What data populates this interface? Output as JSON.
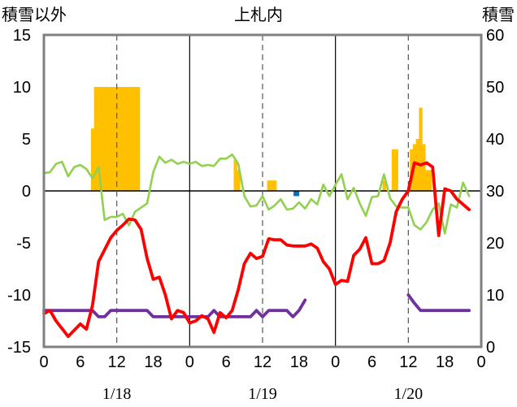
{
  "chart_data": {
    "type": "bar+line",
    "title": "上札内",
    "left_axis_label": "積雪以外",
    "right_axis_label": "積雪",
    "left_ylim": [
      -15,
      15
    ],
    "right_ylim": [
      0,
      60
    ],
    "left_ticks": [
      "15",
      "10",
      "5",
      "0",
      "-5",
      "-10",
      "-15"
    ],
    "right_ticks": [
      "60",
      "50",
      "40",
      "30",
      "20",
      "10",
      "0"
    ],
    "x_tick_labels": [
      "0",
      "6",
      "12",
      "18",
      "0",
      "6",
      "12",
      "18",
      "0",
      "6",
      "12",
      "18",
      "0"
    ],
    "x_hours_range": [
      0,
      72
    ],
    "date_labels": [
      {
        "label": "1/18",
        "hour": 12
      },
      {
        "label": "1/19",
        "hour": 36
      },
      {
        "label": "1/20",
        "hour": 60
      }
    ],
    "colors": {
      "bars": "#FFC000",
      "blue_bar": "#0070C0",
      "red": "#FF0000",
      "green": "#92D050",
      "purple": "#7030A0",
      "frame": "#808080"
    },
    "bars_orange": {
      "axis": "left",
      "points": [
        [
          8,
          6
        ],
        [
          8.5,
          10
        ],
        [
          9,
          10
        ],
        [
          9.5,
          10
        ],
        [
          10,
          10
        ],
        [
          10.5,
          10
        ],
        [
          11,
          10
        ],
        [
          11.5,
          10
        ],
        [
          12,
          10
        ],
        [
          12.5,
          10
        ],
        [
          13,
          10
        ],
        [
          13.5,
          10
        ],
        [
          14,
          10
        ],
        [
          14.5,
          10
        ],
        [
          15,
          10
        ],
        [
          15.5,
          10
        ],
        [
          31.5,
          3
        ],
        [
          32,
          2
        ],
        [
          37,
          1
        ],
        [
          37.5,
          1
        ],
        [
          38,
          1
        ],
        [
          56,
          1
        ],
        [
          57.5,
          4
        ],
        [
          58,
          4
        ],
        [
          60.5,
          4
        ],
        [
          61,
          4.5
        ],
        [
          61.5,
          5
        ],
        [
          62,
          8
        ],
        [
          62.5,
          4.5
        ],
        [
          63,
          2
        ],
        [
          63.5,
          2
        ]
      ]
    },
    "bars_blue": {
      "axis": "left",
      "points": [
        [
          41.5,
          -0.5
        ]
      ]
    },
    "series": [
      {
        "name": "red",
        "axis": "left",
        "points": [
          [
            0,
            -11.8
          ],
          [
            1,
            -11.5
          ],
          [
            2,
            -12.5
          ],
          [
            4,
            -14
          ],
          [
            6,
            -12.8
          ],
          [
            7,
            -13.3
          ],
          [
            8,
            -11
          ],
          [
            9,
            -6.8
          ],
          [
            11,
            -4.5
          ],
          [
            12,
            -3.8
          ],
          [
            13,
            -3.3
          ],
          [
            14,
            -2.7
          ],
          [
            15,
            -2.8
          ],
          [
            16,
            -3.7
          ],
          [
            17,
            -6.5
          ],
          [
            18,
            -8.5
          ],
          [
            19,
            -8.3
          ],
          [
            20,
            -10
          ],
          [
            21,
            -12.3
          ],
          [
            22,
            -11.5
          ],
          [
            23,
            -11.7
          ],
          [
            24,
            -12.7
          ],
          [
            25,
            -12.5
          ],
          [
            26,
            -12
          ],
          [
            27,
            -12.3
          ],
          [
            28,
            -13.6
          ],
          [
            29,
            -11.7
          ],
          [
            30,
            -12.2
          ],
          [
            31,
            -11.5
          ],
          [
            32,
            -9.5
          ],
          [
            33,
            -7
          ],
          [
            34,
            -6
          ],
          [
            35,
            -6.5
          ],
          [
            36,
            -6.3
          ],
          [
            37,
            -4.6
          ],
          [
            38,
            -4.7
          ],
          [
            39,
            -4.7
          ],
          [
            40,
            -5.2
          ],
          [
            41,
            -5.3
          ],
          [
            42,
            -5.3
          ],
          [
            43,
            -5.3
          ],
          [
            44,
            -5.1
          ],
          [
            45,
            -5.5
          ],
          [
            46,
            -6.8
          ],
          [
            47,
            -7.5
          ],
          [
            48,
            -9
          ],
          [
            49,
            -8.6
          ],
          [
            50,
            -8.7
          ],
          [
            51,
            -6.2
          ],
          [
            52,
            -5.6
          ],
          [
            53,
            -4.5
          ],
          [
            54,
            -7
          ],
          [
            55,
            -7
          ],
          [
            56,
            -6.7
          ],
          [
            57,
            -5
          ],
          [
            58,
            -2
          ],
          [
            59,
            -0.8
          ],
          [
            60,
            0
          ],
          [
            61,
            2.7
          ],
          [
            62,
            2.5
          ],
          [
            63,
            2.7
          ],
          [
            64,
            2.3
          ],
          [
            65,
            -4.3
          ],
          [
            66,
            0.2
          ],
          [
            67,
            0
          ],
          [
            68,
            -0.8
          ],
          [
            69,
            -1.3
          ],
          [
            70,
            -1.8
          ]
        ]
      },
      {
        "name": "green",
        "axis": "left",
        "points": [
          [
            0,
            1.7
          ],
          [
            1,
            1.8
          ],
          [
            2,
            2.6
          ],
          [
            3,
            2.8
          ],
          [
            4,
            1.4
          ],
          [
            5,
            2.3
          ],
          [
            6,
            2.5
          ],
          [
            7,
            2.1
          ],
          [
            8,
            1.2
          ],
          [
            9,
            2.3
          ],
          [
            10,
            -2.8
          ],
          [
            11,
            -2.5
          ],
          [
            12,
            -2.5
          ],
          [
            13,
            -2.2
          ],
          [
            14,
            -3.3
          ],
          [
            15,
            -2
          ],
          [
            16,
            -1.6
          ],
          [
            17,
            -1.2
          ],
          [
            18,
            1.8
          ],
          [
            19,
            3.3
          ],
          [
            20,
            2.7
          ],
          [
            21,
            3.0
          ],
          [
            22,
            2.6
          ],
          [
            23,
            2.8
          ],
          [
            24,
            2.6
          ],
          [
            25,
            2.8
          ],
          [
            26,
            2.4
          ],
          [
            27,
            2.5
          ],
          [
            28,
            2.4
          ],
          [
            29,
            3.1
          ],
          [
            30,
            3.1
          ],
          [
            31,
            3.5
          ],
          [
            32,
            2.6
          ],
          [
            33,
            -0.5
          ],
          [
            34,
            -1.5
          ],
          [
            35,
            -1.4
          ],
          [
            36,
            -0.5
          ],
          [
            37,
            -1.8
          ],
          [
            38,
            -1.4
          ],
          [
            39,
            -0.8
          ],
          [
            40,
            -1.8
          ],
          [
            41,
            -1.7
          ],
          [
            42,
            -1.1
          ],
          [
            43,
            -1.7
          ],
          [
            44,
            -0.8
          ],
          [
            45,
            -1.3
          ],
          [
            46,
            0.6
          ],
          [
            47,
            -0.5
          ],
          [
            48,
            0.6
          ],
          [
            49,
            1.6
          ],
          [
            50,
            -0.8
          ],
          [
            51,
            0.3
          ],
          [
            52,
            -1.2
          ],
          [
            53,
            -2.4
          ],
          [
            54,
            -0.6
          ],
          [
            55,
            -0.5
          ],
          [
            56,
            1.6
          ],
          [
            57,
            -0.7
          ],
          [
            58,
            -1.5
          ],
          [
            59,
            -1.6
          ],
          [
            60,
            -1.6
          ],
          [
            61,
            -3.3
          ],
          [
            62,
            -3.7
          ],
          [
            63,
            -3.0
          ],
          [
            64,
            -1.8
          ],
          [
            65,
            -1.2
          ],
          [
            66,
            -4.1
          ],
          [
            67,
            -1.3
          ],
          [
            68,
            -1.6
          ],
          [
            69,
            0.8
          ],
          [
            70,
            -0.5
          ]
        ]
      },
      {
        "name": "purple",
        "axis": "left",
        "segments": [
          [
            [
              0,
              -11.5
            ],
            [
              4,
              -11.5
            ],
            [
              6,
              -11.5
            ],
            [
              8,
              -11.5
            ],
            [
              9,
              -12.1
            ],
            [
              10,
              -12.1
            ],
            [
              11,
              -11.5
            ],
            [
              12,
              -11.5
            ],
            [
              14,
              -11.5
            ],
            [
              16,
              -11.5
            ],
            [
              17,
              -11.5
            ],
            [
              18,
              -12.1
            ],
            [
              20,
              -12.1
            ],
            [
              22,
              -12.1
            ],
            [
              24,
              -12.1
            ],
            [
              26,
              -12.1
            ],
            [
              27,
              -12.1
            ],
            [
              28,
              -11.5
            ],
            [
              29,
              -12.1
            ],
            [
              30,
              -12.1
            ],
            [
              32,
              -12.1
            ],
            [
              34,
              -12.1
            ],
            [
              35,
              -11.5
            ],
            [
              36,
              -12.1
            ],
            [
              37,
              -11.5
            ],
            [
              38,
              -11.5
            ],
            [
              39,
              -11.5
            ],
            [
              40,
              -11.5
            ],
            [
              41,
              -12.1
            ],
            [
              42,
              -11.5
            ],
            [
              43,
              -10.5
            ]
          ],
          [
            [
              60,
              -10
            ],
            [
              61,
              -10.8
            ],
            [
              62,
              -11.5
            ],
            [
              64,
              -11.5
            ],
            [
              66,
              -11.5
            ],
            [
              68,
              -11.5
            ],
            [
              70,
              -11.5
            ]
          ]
        ]
      }
    ],
    "grid": {
      "dashed_every_hours": 12,
      "solid_every_hours": 24
    }
  }
}
